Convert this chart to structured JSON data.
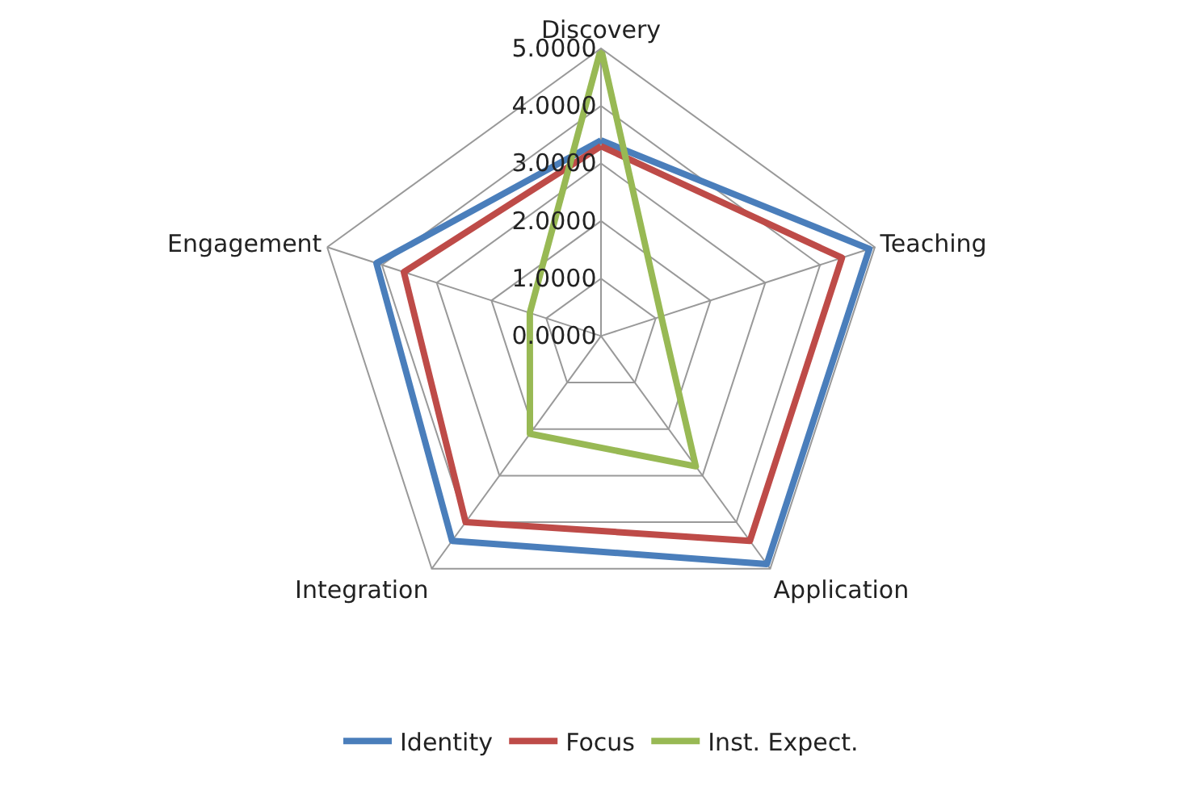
{
  "chart_data": {
    "type": "radar",
    "categories": [
      "Discovery",
      "Teaching",
      "Application",
      "Integration",
      "Engagement"
    ],
    "series": [
      {
        "name": "Identity",
        "color": "#4a7ebb",
        "values": [
          3.4,
          4.9,
          4.9,
          4.4,
          4.1
        ]
      },
      {
        "name": "Focus",
        "color": "#be4b48",
        "values": [
          3.3,
          4.4,
          4.4,
          4.0,
          3.6
        ]
      },
      {
        "name": "Inst. Expect.",
        "color": "#98b954",
        "values": [
          5.0,
          1.1,
          2.8,
          2.1,
          1.3
        ]
      }
    ],
    "ylim": [
      0,
      5
    ],
    "yticks": [
      {
        "value": 0,
        "label": "0.0000"
      },
      {
        "value": 1,
        "label": "1.0000"
      },
      {
        "value": 2,
        "label": "2.0000"
      },
      {
        "value": 3,
        "label": "3.0000"
      },
      {
        "value": 4,
        "label": "4.0000"
      },
      {
        "value": 5,
        "label": "5.0000"
      }
    ],
    "grid": true,
    "legend": "bottom",
    "marker": "none",
    "line_style": "solid"
  }
}
